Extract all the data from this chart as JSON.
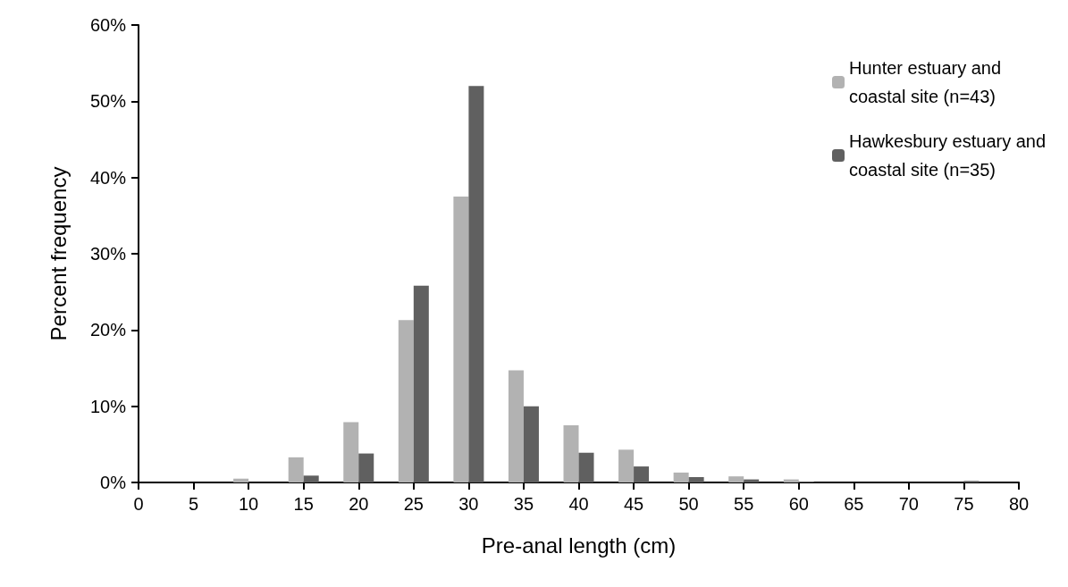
{
  "chart_data": {
    "type": "bar",
    "xlabel": "Pre-anal length (cm)",
    "ylabel": "Percent frequency",
    "x": [
      5,
      10,
      15,
      20,
      25,
      30,
      35,
      40,
      45,
      50,
      55,
      60,
      65,
      70,
      75
    ],
    "series": [
      {
        "name": "Hunter estuary and coastal site (n=43)",
        "color": "#b2b2b2",
        "values": [
          0,
          0.5,
          3.3,
          7.9,
          21.3,
          37.5,
          14.7,
          7.5,
          4.3,
          1.3,
          0.8,
          0.4,
          0,
          0,
          0
        ]
      },
      {
        "name": "Hawkesbury estuary and coastal site (n=35)",
        "color": "#606060",
        "values": [
          0,
          0,
          0.9,
          3.8,
          25.8,
          52,
          10.0,
          3.9,
          2.1,
          0.7,
          0.4,
          0.1,
          0,
          0,
          0.2
        ]
      }
    ],
    "xlim": [
      0,
      80
    ],
    "xticks": [
      0,
      5,
      10,
      15,
      20,
      25,
      30,
      35,
      40,
      45,
      50,
      55,
      60,
      65,
      70,
      75,
      80
    ],
    "ylim": [
      0,
      60
    ],
    "yticks": [
      {
        "value": 0,
        "label": "0%"
      },
      {
        "value": 10,
        "label": "10%"
      },
      {
        "value": 20,
        "label": "20%"
      },
      {
        "value": 30,
        "label": "30%"
      },
      {
        "value": 40,
        "label": "40%"
      },
      {
        "value": 50,
        "label": "50%"
      },
      {
        "value": 60,
        "label": "60%"
      }
    ],
    "grid": false,
    "legend": "top right"
  }
}
